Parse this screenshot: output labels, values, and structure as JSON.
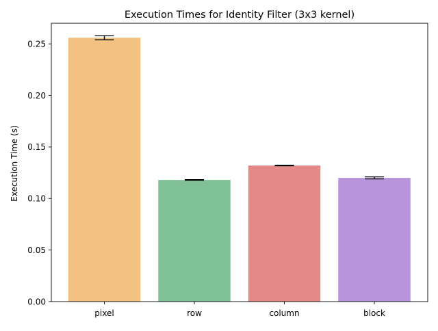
{
  "chart_data": {
    "type": "bar",
    "title": "Execution Times for Identity Filter (3x3 kernel)",
    "xlabel": "",
    "ylabel": "Execution Time (s)",
    "ylim": [
      0,
      0.27
    ],
    "yticks": [
      0.0,
      0.05,
      0.1,
      0.15,
      0.2,
      0.25
    ],
    "ytick_labels": [
      "0.00",
      "0.05",
      "0.10",
      "0.15",
      "0.20",
      "0.25"
    ],
    "categories": [
      "pixel",
      "row",
      "column",
      "block"
    ],
    "values": [
      0.256,
      0.118,
      0.132,
      0.12
    ],
    "errors": [
      0.002,
      0.0003,
      0.0003,
      0.001
    ],
    "colors": [
      "#f3c283",
      "#80c197",
      "#e48988",
      "#b794dc"
    ],
    "grid": false,
    "legend": "none"
  }
}
